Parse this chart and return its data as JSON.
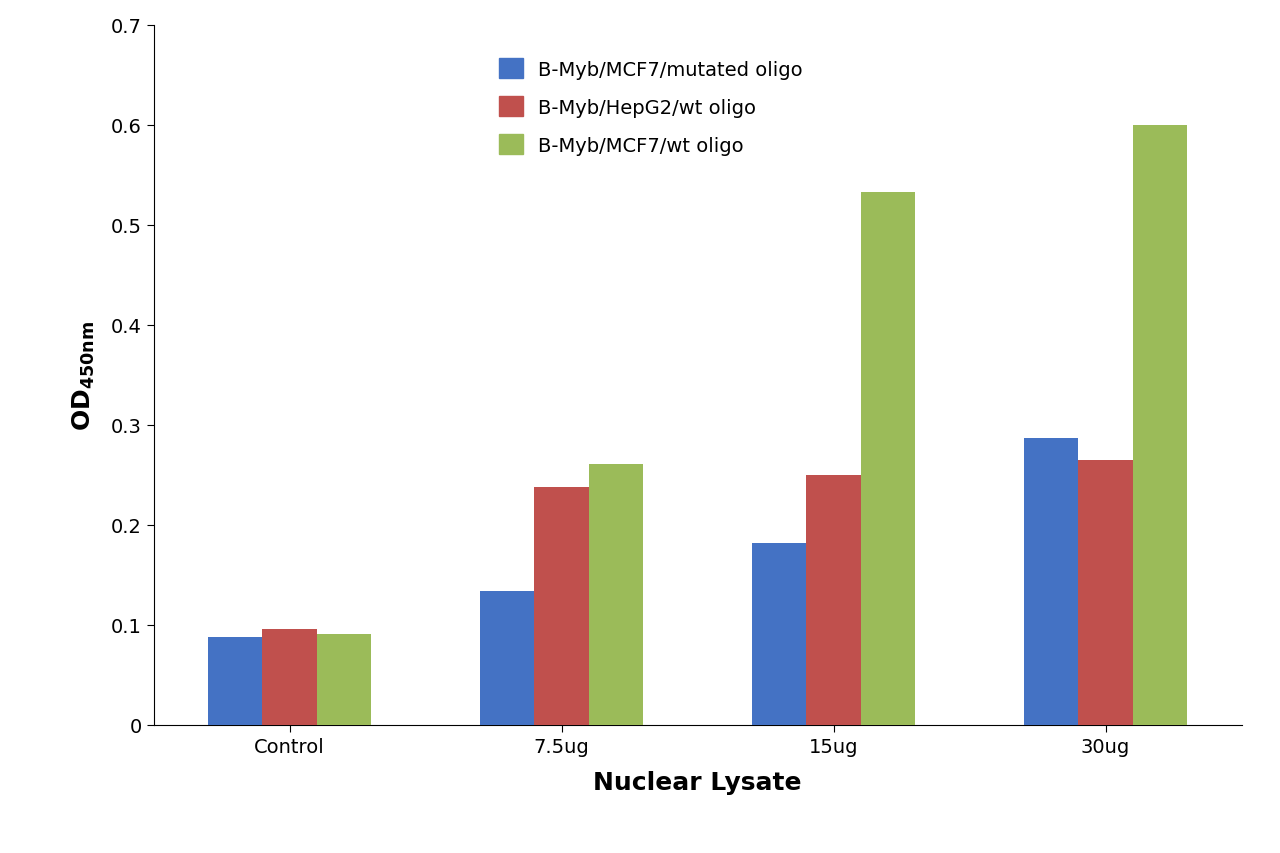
{
  "categories": [
    "Control",
    "7.5ug",
    "15ug",
    "30ug"
  ],
  "series": [
    {
      "label": "B-Myb/MCF7/mutated oligo",
      "color": "#4472C4",
      "values": [
        0.088,
        0.134,
        0.182,
        0.287
      ]
    },
    {
      "label": "B-Myb/HepG2/wt oligo",
      "color": "#C0504D",
      "values": [
        0.096,
        0.238,
        0.25,
        0.265
      ]
    },
    {
      "label": "B-Myb/MCF7/wt oligo",
      "color": "#9BBB59",
      "values": [
        0.091,
        0.261,
        0.533,
        0.6
      ]
    }
  ],
  "ylim": [
    0,
    0.7
  ],
  "yticks": [
    0,
    0.1,
    0.2,
    0.3,
    0.4,
    0.5,
    0.6,
    0.7
  ],
  "xlabel": "Nuclear Lysate",
  "background_color": "#ffffff",
  "bar_width": 0.2,
  "legend_fontsize": 14,
  "axis_label_fontsize": 18,
  "tick_fontsize": 14
}
